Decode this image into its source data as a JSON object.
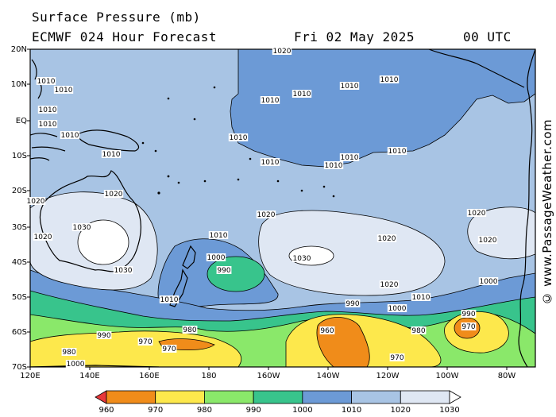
{
  "header": {
    "title": "Surface Pressure (mb)",
    "model": "ECMWF 024 Hour Forecast",
    "date": "Fri 02 May 2025",
    "time": "00 UTC"
  },
  "credit": "© www.PassageWeather.com",
  "lat_labels": [
    "20N",
    "10N",
    "EQ",
    "10S",
    "20S",
    "30S",
    "40S",
    "50S",
    "60S",
    "70S"
  ],
  "lon_labels": [
    "120E",
    "140E",
    "160E",
    "180",
    "160W",
    "140W",
    "120W",
    "100W",
    "80W"
  ],
  "legend": {
    "values": [
      "960",
      "970",
      "980",
      "990",
      "1000",
      "1010",
      "1020",
      "1030"
    ],
    "colors": [
      "#e8383a",
      "#f08c1a",
      "#fde84c",
      "#8ae86a",
      "#38c48c",
      "#6c9ad6",
      "#a8c4e4",
      "#dfe7f3",
      "#ffffff"
    ]
  },
  "isobar_labels": [
    "1020",
    "1010",
    "1010",
    "1010",
    "1010",
    "1010",
    "1010",
    "1010",
    "1010",
    "1010",
    "1010",
    "1010",
    "1010",
    "1010",
    "1020",
    "1030",
    "1030",
    "1020",
    "1000",
    "990",
    "1010",
    "1010",
    "980",
    "970",
    "970",
    "990",
    "980",
    "1000",
    "1010",
    "1010",
    "1020",
    "1030",
    "1020",
    "1020",
    "960",
    "990",
    "1000",
    "980",
    "970",
    "1010",
    "1020",
    "1020",
    "1000",
    "990",
    "970",
    "1020"
  ]
}
